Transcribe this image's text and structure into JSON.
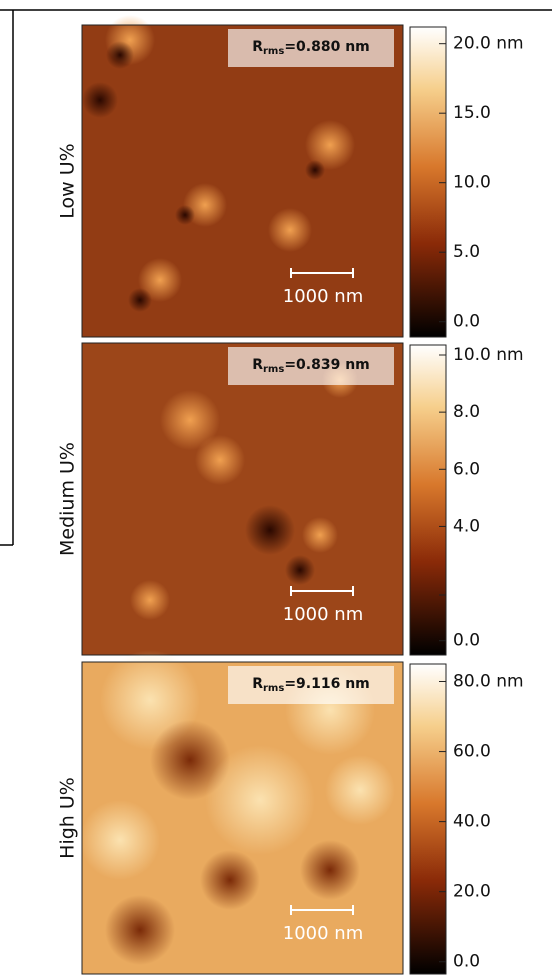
{
  "panels": [
    {
      "label": "Low U%",
      "rms": {
        "symbol": "R",
        "subscript": "rms",
        "value": "=0.880 nm"
      },
      "scale_bar": "1000 nm",
      "colorbar": {
        "range": [
          -1.1,
          21.2
        ],
        "ticks": [
          {
            "value": 20,
            "label": "20.0 nm"
          },
          {
            "value": 15,
            "label": "15.0"
          },
          {
            "value": 10,
            "label": "10.0"
          },
          {
            "value": 5,
            "label": "5.0"
          },
          {
            "value": 0,
            "label": "0.0"
          }
        ]
      }
    },
    {
      "label": "Medium U%",
      "rms": {
        "symbol": "R",
        "subscript": "rms",
        "value": "=0.839 nm"
      },
      "scale_bar": "1000 nm",
      "colorbar": {
        "range": [
          -0.5,
          10.35
        ],
        "ticks": [
          {
            "value": 10,
            "label": "10.0 nm"
          },
          {
            "value": 8,
            "label": "8.0"
          },
          {
            "value": 6,
            "label": "6.0"
          },
          {
            "value": 4,
            "label": "4.0"
          },
          {
            "value": 1.6,
            "label": null
          },
          {
            "value": 0,
            "label": "0.0"
          }
        ]
      }
    },
    {
      "label": "High U%",
      "rms": {
        "symbol": "R",
        "subscript": "rms",
        "value": "=9.116 nm"
      },
      "scale_bar": "1000 nm",
      "colorbar": {
        "range": [
          -3.5,
          85
        ],
        "ticks": [
          {
            "value": 80,
            "label": "80.0 nm"
          },
          {
            "value": 60,
            "label": "60.0"
          },
          {
            "value": 40,
            "label": "40.0"
          },
          {
            "value": 20,
            "label": "20.0"
          },
          {
            "value": 0,
            "label": "0.0"
          }
        ]
      }
    }
  ]
}
